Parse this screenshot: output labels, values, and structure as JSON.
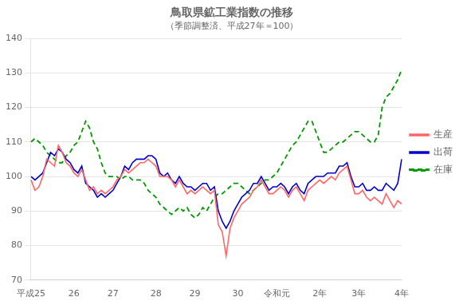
{
  "chart_data": {
    "type": "line",
    "title": "鳥取県鉱工業指数の推移",
    "subtitle": "（季節調整済、平成27年＝100）",
    "categories": [
      "平成25",
      null,
      null,
      null,
      null,
      null,
      null,
      null,
      null,
      null,
      null,
      "26",
      null,
      null,
      null,
      null,
      null,
      null,
      null,
      null,
      null,
      "27",
      null,
      null,
      null,
      null,
      null,
      null,
      null,
      null,
      null,
      null,
      "28",
      null,
      null,
      null,
      null,
      null,
      null,
      null,
      null,
      null,
      "29",
      null,
      null,
      null,
      null,
      null,
      null,
      null,
      null,
      null,
      null,
      "30",
      null,
      null,
      null,
      null,
      null,
      null,
      null,
      null,
      null,
      "令和元",
      null,
      null,
      null,
      null,
      null,
      null,
      null,
      null,
      null,
      null,
      "2年",
      null,
      null,
      null,
      null,
      null,
      null,
      null,
      null,
      null,
      "3年",
      null,
      null,
      null,
      null,
      null,
      null,
      null,
      null,
      null,
      null,
      "4年"
    ],
    "ylim": [
      70,
      140
    ],
    "yticks": [
      70,
      80,
      90,
      100,
      110,
      120,
      130,
      140
    ],
    "grid": true,
    "legend": "right",
    "series": [
      {
        "name": "生産",
        "color": "#FF6666",
        "line_style": "solid",
        "values": [
          99,
          96,
          97,
          100,
          105,
          104,
          103,
          109,
          107,
          104,
          103,
          101,
          100,
          102,
          99,
          96,
          97,
          95,
          96,
          95,
          96,
          97,
          99,
          100,
          102,
          101,
          102,
          103,
          104,
          104,
          105,
          104,
          103,
          100,
          100,
          100,
          99,
          97,
          99,
          97,
          95,
          96,
          95,
          96,
          97,
          96,
          95,
          96,
          86,
          84,
          77,
          85,
          88,
          90,
          92,
          93,
          94,
          96,
          97,
          99,
          97,
          95,
          95,
          96,
          97,
          96,
          94,
          96,
          97,
          95,
          93,
          96,
          97,
          98,
          99,
          98,
          99,
          100,
          99,
          101,
          102,
          103,
          99,
          95,
          95,
          96,
          94,
          93,
          94,
          93,
          92,
          95,
          93,
          91,
          93,
          92
        ]
      },
      {
        "name": "出荷",
        "color": "#0000CC",
        "line_style": "solid",
        "values": [
          100,
          99,
          100,
          101,
          104,
          107,
          106,
          108,
          107,
          105,
          104,
          102,
          101,
          103,
          98,
          97,
          96,
          94,
          95,
          94,
          95,
          96,
          98,
          100,
          103,
          102,
          104,
          105,
          105,
          105,
          106,
          106,
          105,
          101,
          100,
          101,
          99,
          98,
          100,
          98,
          97,
          97,
          96,
          97,
          98,
          98,
          96,
          97,
          90,
          87,
          85,
          87,
          90,
          92,
          94,
          95,
          96,
          98,
          98,
          100,
          98,
          96,
          97,
          97,
          98,
          97,
          95,
          97,
          98,
          96,
          95,
          98,
          99,
          100,
          100,
          100,
          101,
          101,
          101,
          103,
          103,
          104,
          100,
          97,
          97,
          98,
          96,
          96,
          97,
          96,
          96,
          98,
          97,
          96,
          98,
          105
        ]
      },
      {
        "name": "在庫",
        "color": "#009900",
        "line_style": "dashed",
        "values": [
          110,
          111,
          110,
          109,
          107,
          106,
          105,
          104,
          104,
          106,
          107,
          109,
          110,
          113,
          116,
          114,
          110,
          108,
          104,
          101,
          100,
          100,
          100,
          99,
          100,
          100,
          99,
          99,
          99,
          98,
          96,
          95,
          94,
          92,
          91,
          90,
          89,
          90,
          91,
          90,
          91,
          89,
          88,
          89,
          91,
          90,
          92,
          94,
          95,
          95,
          96,
          97,
          98,
          98,
          97,
          96,
          95,
          96,
          97,
          98,
          99,
          99,
          100,
          101,
          103,
          105,
          107,
          109,
          110,
          112,
          114,
          116,
          116,
          113,
          110,
          107,
          107,
          108,
          109,
          110,
          110,
          111,
          112,
          113,
          113,
          112,
          111,
          110,
          110,
          112,
          120,
          123,
          124,
          126,
          128,
          131
        ]
      }
    ]
  }
}
